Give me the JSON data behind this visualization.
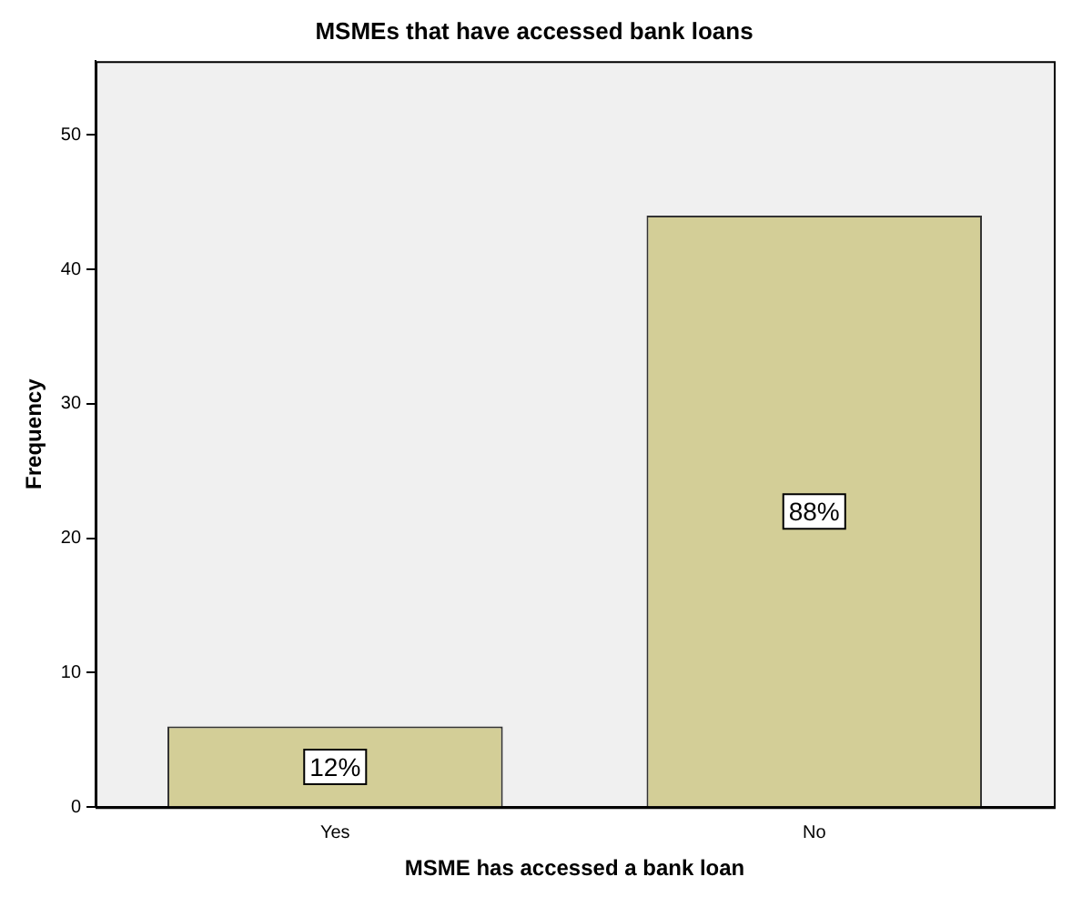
{
  "chart_data": {
    "type": "bar",
    "title": "MSMEs that have accessed bank loans",
    "xlabel": "MSME has accessed a bank loan",
    "ylabel": "Frequency",
    "categories": [
      "Yes",
      "No"
    ],
    "values": [
      6,
      44
    ],
    "color": "#d3ce97",
    "annotations": [
      {
        "text": "12%",
        "x": "Yes",
        "y": 3
      },
      {
        "text": "88%",
        "x": "No",
        "y": 22
      }
    ],
    "ylim": [
      0,
      55.5
    ],
    "yticks": [
      0,
      10,
      20,
      30,
      40,
      50
    ],
    "grid": false,
    "legend": false
  }
}
